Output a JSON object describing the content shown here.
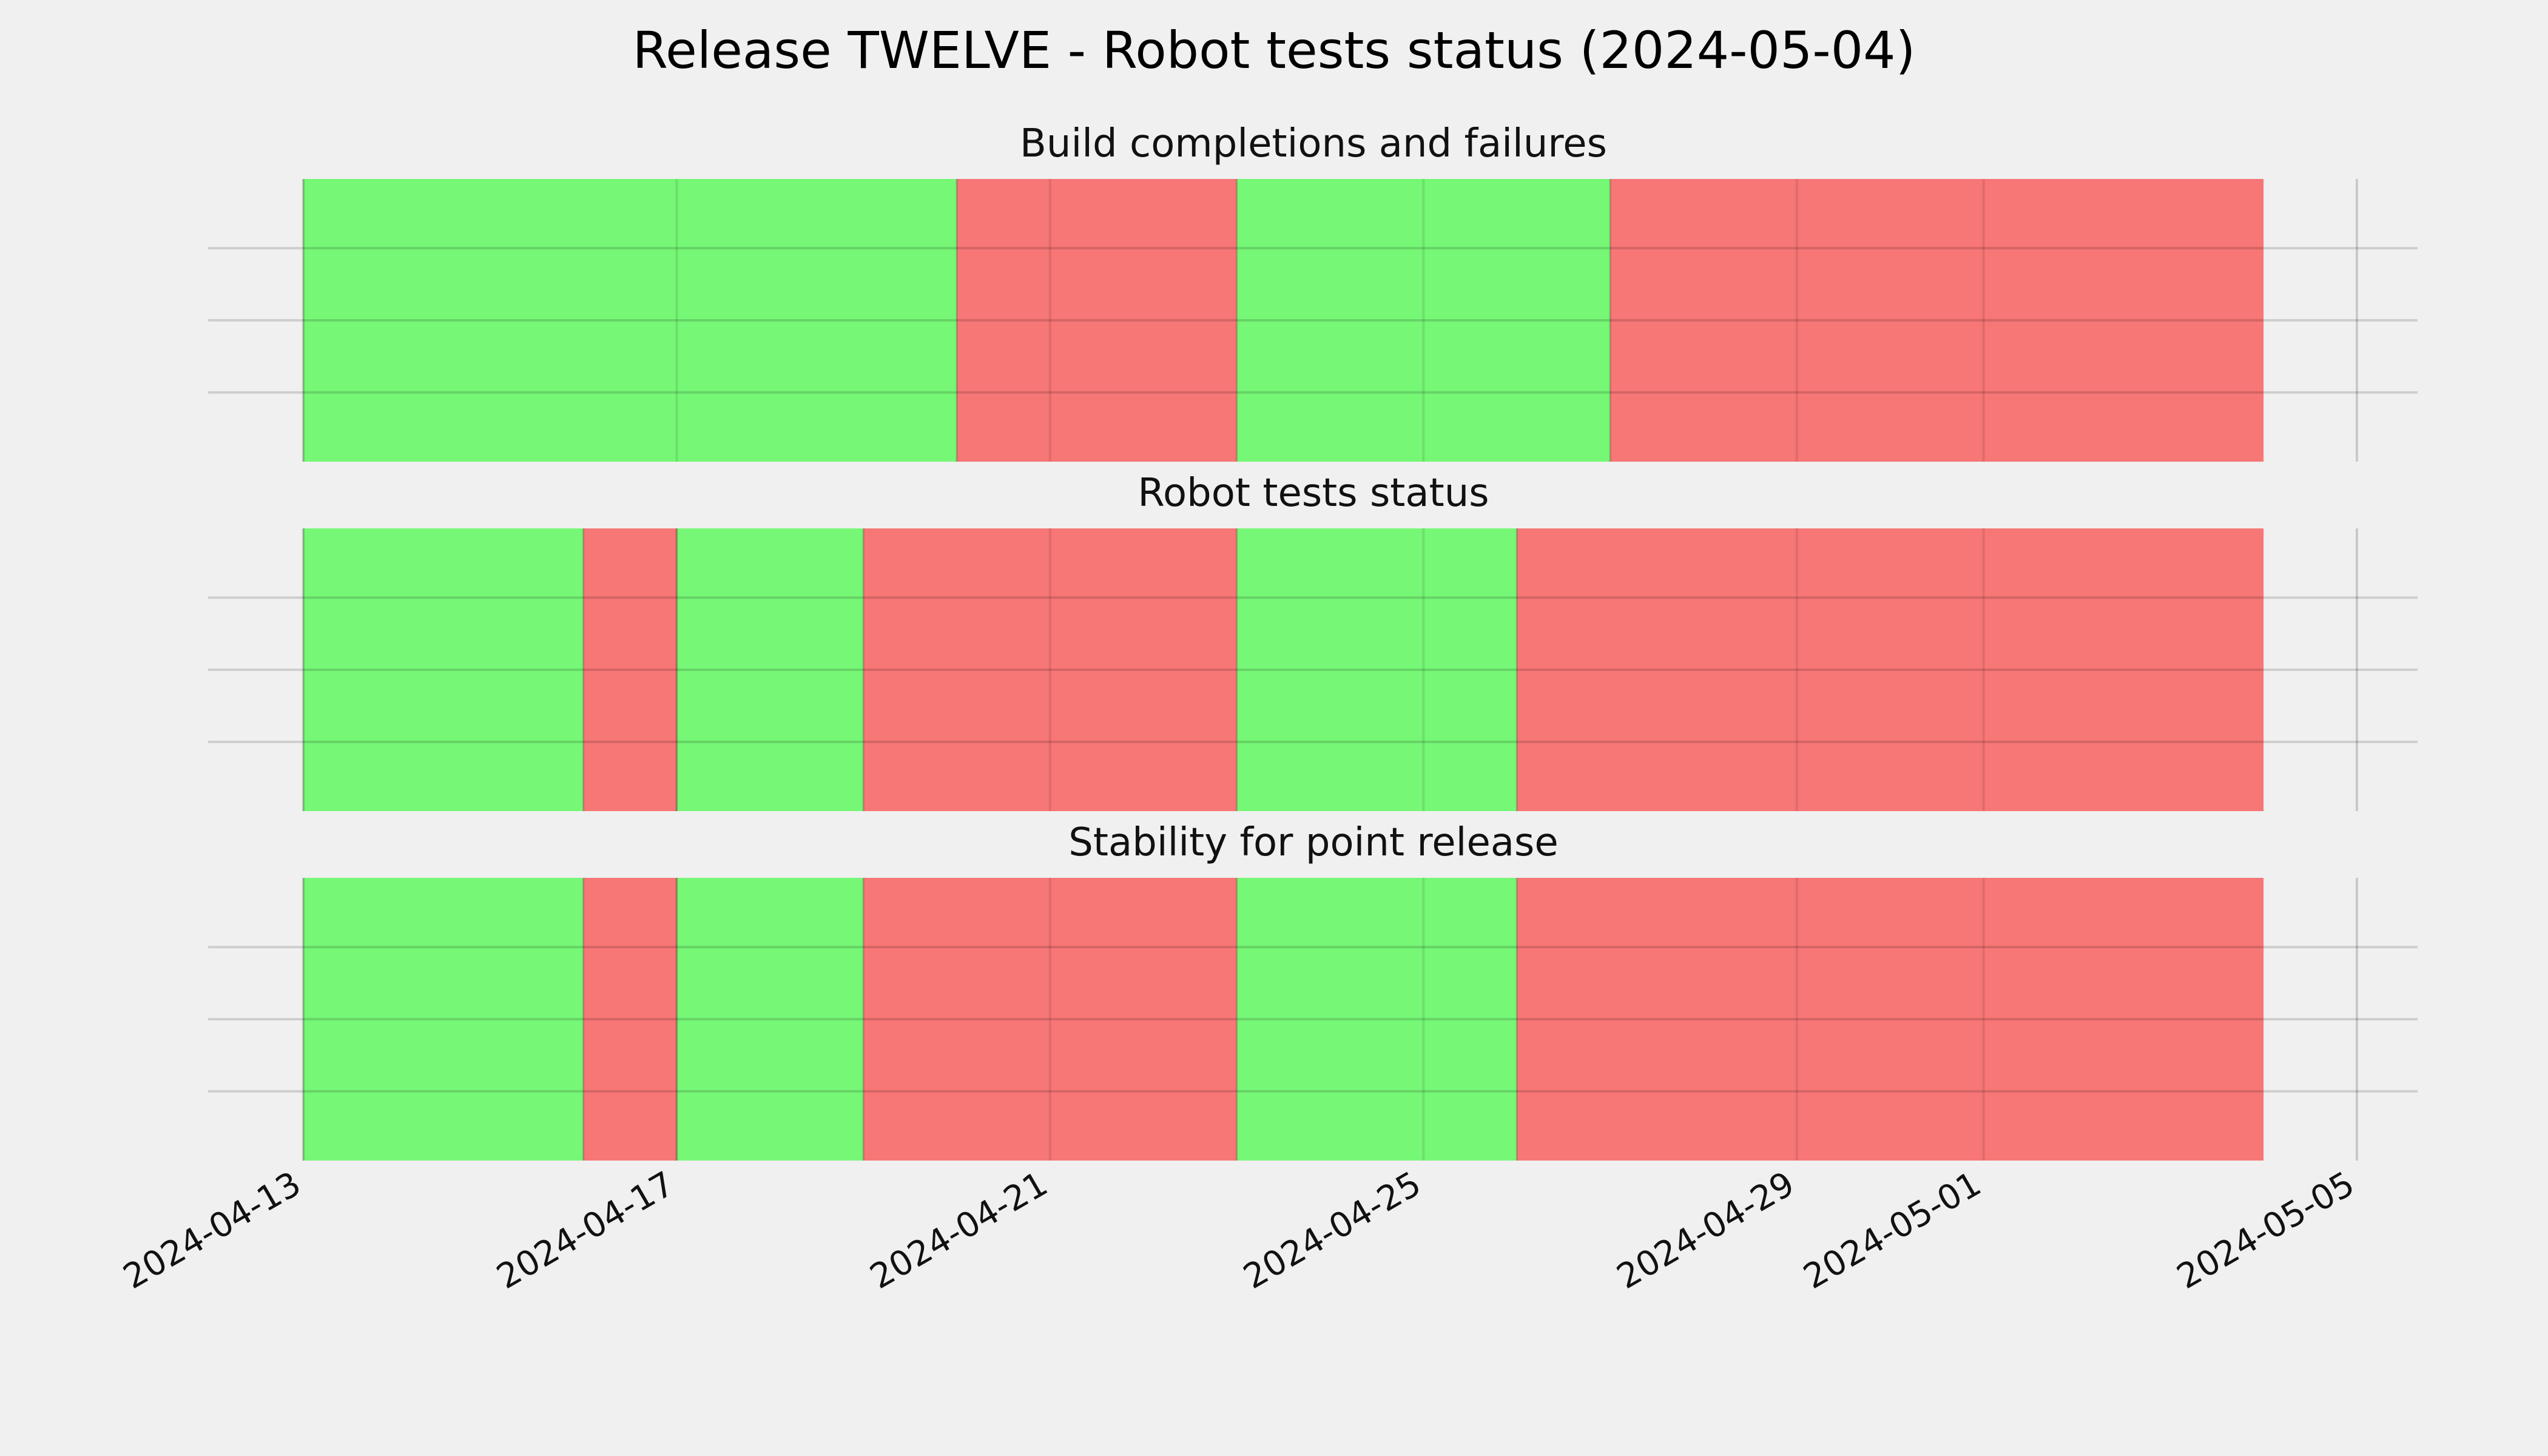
{
  "chart_data": {
    "type": "timeline",
    "title": "Release TWELVE - Robot tests status (2024-05-04)",
    "x_ticks": [
      "2024-04-13",
      "2024-04-17",
      "2024-04-21",
      "2024-04-25",
      "2024-04-29",
      "2024-05-01",
      "2024-05-05"
    ],
    "xlim": [
      "2024-04-13",
      "2024-05-05"
    ],
    "grid": true,
    "status_colors": {
      "pass": "#76f776",
      "fail": "#f77676"
    },
    "panels": [
      {
        "title": "Build completions and failures",
        "segments": [
          {
            "start": "2024-04-13",
            "end": "2024-04-20",
            "status": "pass"
          },
          {
            "start": "2024-04-20",
            "end": "2024-04-23",
            "status": "fail"
          },
          {
            "start": "2024-04-23",
            "end": "2024-04-27",
            "status": "pass"
          },
          {
            "start": "2024-04-27",
            "end": "2024-05-04",
            "status": "fail"
          }
        ]
      },
      {
        "title": "Robot tests status",
        "segments": [
          {
            "start": "2024-04-13",
            "end": "2024-04-16",
            "status": "pass"
          },
          {
            "start": "2024-04-16",
            "end": "2024-04-17",
            "status": "fail"
          },
          {
            "start": "2024-04-17",
            "end": "2024-04-19",
            "status": "pass"
          },
          {
            "start": "2024-04-19",
            "end": "2024-04-23",
            "status": "fail"
          },
          {
            "start": "2024-04-23",
            "end": "2024-04-26",
            "status": "pass"
          },
          {
            "start": "2024-04-26",
            "end": "2024-05-04",
            "status": "fail"
          }
        ]
      },
      {
        "title": "Stability for point release",
        "segments": [
          {
            "start": "2024-04-13",
            "end": "2024-04-16",
            "status": "pass"
          },
          {
            "start": "2024-04-16",
            "end": "2024-04-17",
            "status": "fail"
          },
          {
            "start": "2024-04-17",
            "end": "2024-04-19",
            "status": "pass"
          },
          {
            "start": "2024-04-19",
            "end": "2024-04-23",
            "status": "fail"
          },
          {
            "start": "2024-04-23",
            "end": "2024-04-26",
            "status": "pass"
          },
          {
            "start": "2024-04-26",
            "end": "2024-05-04",
            "status": "fail"
          }
        ]
      }
    ]
  }
}
